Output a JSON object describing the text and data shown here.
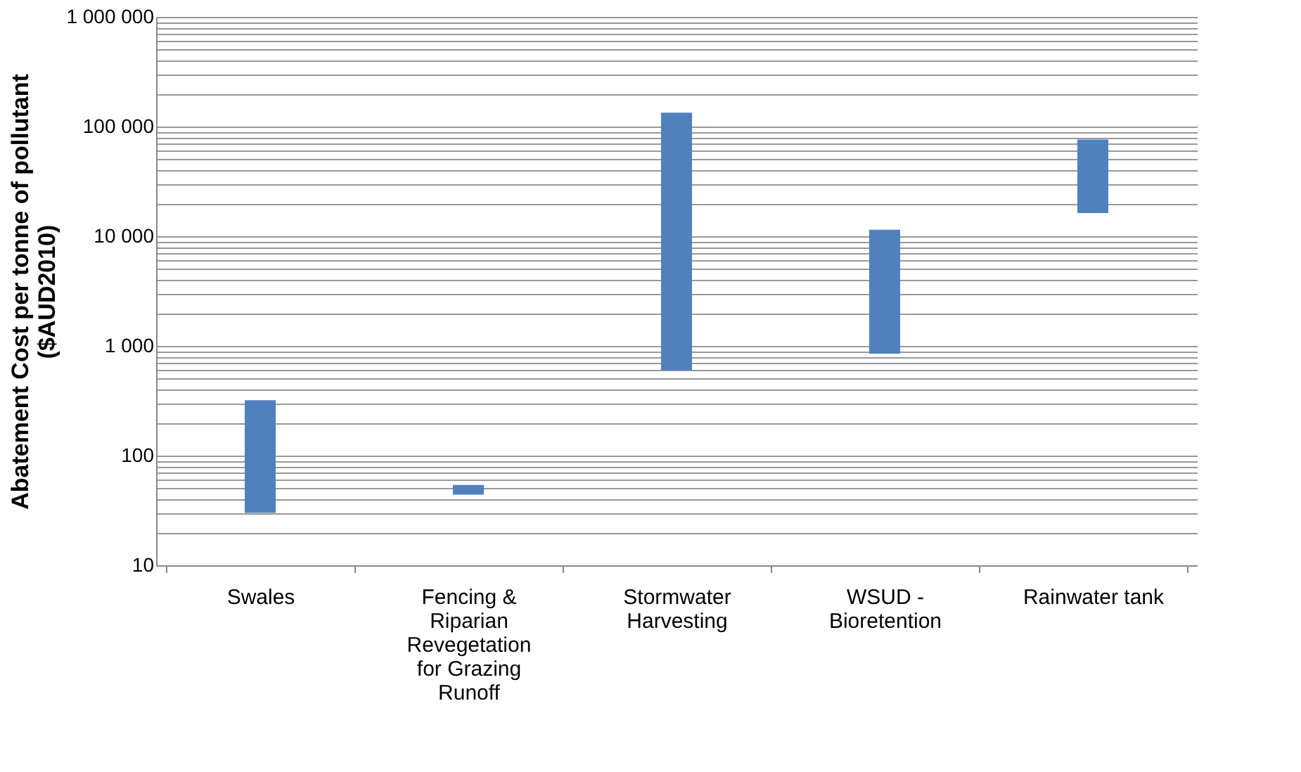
{
  "chart_data": {
    "type": "bar",
    "ylabel": "Abatement Cost per tonne of pollutant ($AUD2010)",
    "categories": [
      "Swales",
      "Fencing & Riparian Revegetation for Grazing Runoff",
      "Stormwater Harvesting",
      "WSUD - Bioretention",
      "Rainwater tank"
    ],
    "base": [
      30,
      44,
      600,
      850,
      16300
    ],
    "values": [
      290,
      10,
      133400,
      10600,
      59700
    ],
    "color": "#4f81bd",
    "log": true,
    "grid": "y",
    "ylim": [
      10,
      1000000
    ],
    "yticks": [
      10,
      {
        "value": 20,
        "label": null
      },
      {
        "value": 30,
        "label": null
      },
      {
        "value": 40,
        "label": null
      },
      {
        "value": 50,
        "label": null
      },
      {
        "value": 60,
        "label": null
      },
      {
        "value": 70,
        "label": null
      },
      {
        "value": 80,
        "label": null
      },
      {
        "value": 90,
        "label": null
      },
      100,
      {
        "value": 200,
        "label": null
      },
      {
        "value": 300,
        "label": null
      },
      {
        "value": 400,
        "label": null
      },
      {
        "value": 500,
        "label": null
      },
      {
        "value": 600,
        "label": null
      },
      {
        "value": 700,
        "label": null
      },
      {
        "value": 800,
        "label": null
      },
      {
        "value": 900,
        "label": null
      },
      {
        "value": 1000,
        "label": "1 000"
      },
      {
        "value": 2000,
        "label": null
      },
      {
        "value": 3000,
        "label": null
      },
      {
        "value": 4000,
        "label": null
      },
      {
        "value": 5000,
        "label": null
      },
      {
        "value": 6000,
        "label": null
      },
      {
        "value": 7000,
        "label": null
      },
      {
        "value": 8000,
        "label": null
      },
      {
        "value": 9000,
        "label": null
      },
      {
        "value": 10000,
        "label": "10 000"
      },
      {
        "value": 20000,
        "label": null
      },
      {
        "value": 30000,
        "label": null
      },
      {
        "value": 40000,
        "label": null
      },
      {
        "value": 50000,
        "label": null
      },
      {
        "value": 60000,
        "label": null
      },
      {
        "value": 70000,
        "label": null
      },
      {
        "value": 80000,
        "label": null
      },
      {
        "value": 90000,
        "label": null
      },
      {
        "value": 100000,
        "label": "100 000"
      },
      {
        "value": 200000,
        "label": null
      },
      {
        "value": 300000,
        "label": null
      },
      {
        "value": 400000,
        "label": null
      },
      {
        "value": 500000,
        "label": null
      },
      {
        "value": 600000,
        "label": null
      },
      {
        "value": 700000,
        "label": null
      },
      {
        "value": 800000,
        "label": null
      },
      {
        "value": 900000,
        "label": null
      },
      {
        "value": 1000000,
        "label": "1 000 000"
      }
    ]
  }
}
